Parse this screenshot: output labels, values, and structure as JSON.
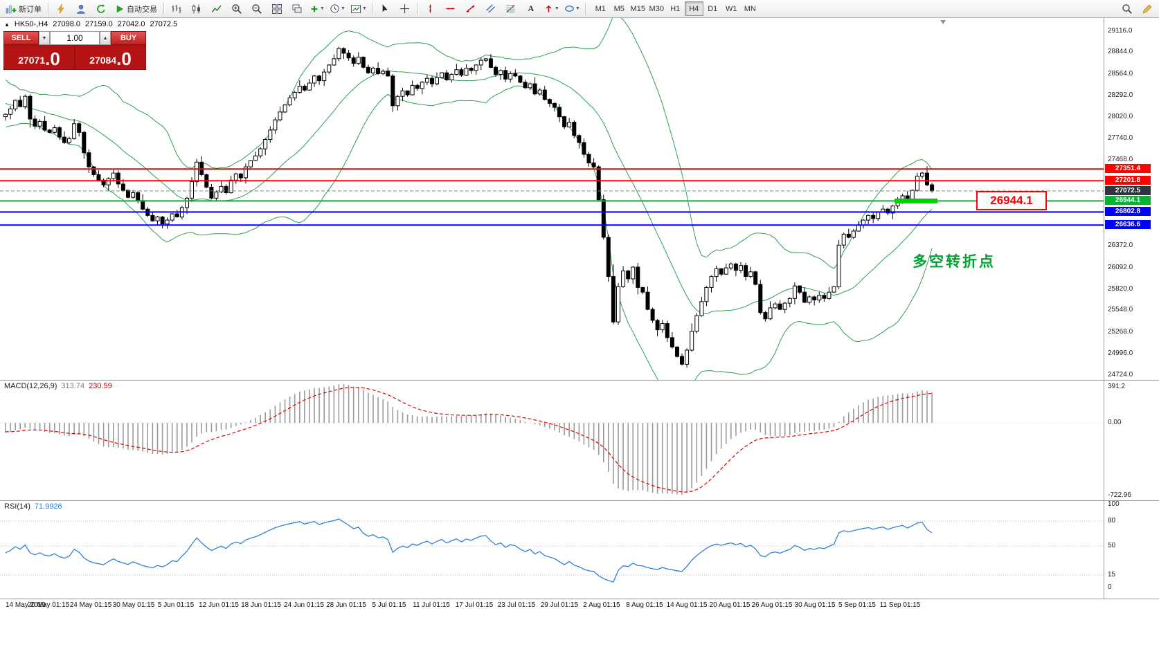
{
  "toolbar": {
    "new_order_label": "新订单",
    "autotrade_label": "自动交易",
    "timeframes": [
      {
        "label": "M1",
        "active": false
      },
      {
        "label": "M5",
        "active": false
      },
      {
        "label": "M15",
        "active": false
      },
      {
        "label": "M30",
        "active": false
      },
      {
        "label": "H1",
        "active": false
      },
      {
        "label": "H4",
        "active": true
      },
      {
        "label": "D1",
        "active": false
      },
      {
        "label": "W1",
        "active": false
      },
      {
        "label": "MN",
        "active": false
      }
    ],
    "text_tool_label": "A",
    "icon_names": [
      "new-order-icon",
      "bolt-icon",
      "profile-icon",
      "refresh-icon",
      "autotrade-play-icon",
      "bars-chart-icon",
      "candlestick-chart-icon",
      "line-chart-icon",
      "zoom-in-icon",
      "zoom-out-icon",
      "tile-windows-icon",
      "cascade-windows-icon",
      "indicators-plus-icon",
      "period-clock-icon",
      "chart-template-icon",
      "cursor-icon",
      "crosshair-icon",
      "vertical-line-icon",
      "horizontal-line-icon",
      "trendline-icon",
      "channel-icon",
      "fibonacci-icon",
      "text-icon",
      "arrows-icon",
      "shapes-icon",
      "search-icon",
      "edit-icon"
    ]
  },
  "chart": {
    "symbol": "HK50-,H4",
    "ohlc": {
      "open": "27098.0",
      "high": "27159.0",
      "low": "27042.0",
      "close": "27072.5"
    },
    "trade_panel": {
      "sell_label": "SELL",
      "buy_label": "BUY",
      "volume": "1.00",
      "sell_price_main": "27071",
      "sell_price_big": ".0",
      "buy_price_main": "27084",
      "buy_price_big": ".0"
    },
    "annotation": "多空转折点",
    "callout_price": "26944.1",
    "price_range": {
      "min": 24660,
      "max": 29280
    },
    "hlines": [
      {
        "price": 27351.4,
        "label": "27351.4",
        "color": "#ff0000",
        "width": 2,
        "style": "solid",
        "tag_bg": "#ff0000"
      },
      {
        "price": 27201.8,
        "label": "27201.8",
        "color": "#ff0000",
        "width": 2,
        "style": "solid",
        "tag_bg": "#ff0000"
      },
      {
        "price": 27072.5,
        "label": "27072.5",
        "color": "#808080",
        "width": 1,
        "style": "dash",
        "tag_bg": "#2f3440"
      },
      {
        "price": 26944.1,
        "label": "26944.1",
        "color": "#00b830",
        "width": 2,
        "style": "solid",
        "tag_bg": "#00b830"
      },
      {
        "price": 26802.8,
        "label": "26802.8",
        "color": "#0000ff",
        "width": 2,
        "style": "solid",
        "tag_bg": "#0000ff"
      },
      {
        "price": 26636.6,
        "label": "26636.6",
        "color": "#0000ff",
        "width": 2,
        "style": "solid",
        "tag_bg": "#0000ff"
      }
    ],
    "highlight_segment": {
      "price": 26944.1,
      "color": "#00d200"
    },
    "y_axis_labels": [
      29116.0,
      28844.0,
      28564.0,
      28292.0,
      28020.0,
      27740.0,
      27468.0,
      26372.0,
      26092.0,
      25820.0,
      25548.0,
      25268.0,
      24996.0,
      24724.0
    ],
    "x_axis_labels": [
      "14 May 2019",
      "20 May 01:15",
      "24 May 01:15",
      "30 May 01:15",
      "5 Jun 01:15",
      "12 Jun 01:15",
      "18 Jun 01:15",
      "24 Jun 01:15",
      "28 Jun 01:15",
      "5 Jul 01:15",
      "11 Jul 01:15",
      "17 Jul 01:15",
      "23 Jul 01:15",
      "29 Jul 01:15",
      "2 Aug 01:15",
      "8 Aug 01:15",
      "14 Aug 01:15",
      "20 Aug 01:15",
      "26 Aug 01:15",
      "30 Aug 01:15",
      "5 Sep 01:15",
      "11 Sep 01:15"
    ],
    "bollinger": {
      "period": 20,
      "deviation": 2,
      "color": "#2e9e52"
    },
    "candles": {
      "first_open": 28020,
      "wick_pattern": [
        12,
        35,
        8,
        52,
        20,
        15,
        42,
        28,
        60,
        10,
        33,
        18,
        70,
        25,
        45,
        14
      ],
      "preroll": [
        28420,
        28500,
        28380,
        28440,
        28300,
        28360,
        28240,
        28300,
        28180,
        28260,
        28120,
        28200,
        28060,
        28160,
        28020,
        28120,
        27980,
        28090,
        27960,
        28060
      ],
      "closes": [
        28050,
        28120,
        28230,
        28150,
        28280,
        27990,
        27900,
        27960,
        27850,
        27820,
        27880,
        27760,
        27690,
        27740,
        27930,
        27820,
        27560,
        27380,
        27280,
        27210,
        27150,
        27230,
        27300,
        27160,
        27080,
        26990,
        27050,
        26950,
        26840,
        26760,
        26690,
        26740,
        26650,
        26700,
        26780,
        26740,
        26860,
        26980,
        27190,
        27440,
        27280,
        27120,
        26980,
        27060,
        27130,
        27050,
        27210,
        27290,
        27240,
        27380,
        27460,
        27520,
        27610,
        27730,
        27850,
        27980,
        28080,
        28170,
        28260,
        28330,
        28410,
        28360,
        28450,
        28540,
        28480,
        28590,
        28680,
        28760,
        28890,
        28830,
        28770,
        28700,
        28780,
        28650,
        28580,
        28640,
        28570,
        28600,
        28540,
        28160,
        28280,
        28350,
        28300,
        28420,
        28380,
        28460,
        28510,
        28440,
        28520,
        28580,
        28490,
        28560,
        28620,
        28550,
        28640,
        28610,
        28680,
        28740,
        28760,
        28650,
        28560,
        28610,
        28500,
        28570,
        28540,
        28460,
        28390,
        28440,
        28310,
        28360,
        28240,
        28190,
        28140,
        28020,
        27890,
        27950,
        27780,
        27690,
        27540,
        27430,
        27380,
        26960,
        26480,
        25980,
        25400,
        25850,
        26050,
        25950,
        26100,
        25840,
        25780,
        25560,
        25420,
        25300,
        25380,
        25200,
        25080,
        24960,
        24860,
        25040,
        25280,
        25480,
        25660,
        25840,
        25980,
        26080,
        26010,
        26090,
        26140,
        26060,
        26120,
        25980,
        26040,
        25880,
        25520,
        25440,
        25580,
        25630,
        25560,
        25640,
        25700,
        25860,
        25780,
        25650,
        25720,
        25680,
        25740,
        25700,
        25780,
        25850,
        26380,
        26520,
        26480,
        26560,
        26640,
        26700,
        26760,
        26720,
        26800,
        26840,
        26790,
        26880,
        26950,
        27010,
        26960,
        27080,
        27260,
        27300,
        27150,
        27072.5
      ]
    }
  },
  "macd": {
    "title": "MACD(12,26,9)",
    "value_main": "313.74",
    "value_signal": "230.59",
    "scale": {
      "top": "391.2",
      "zero": "0.00",
      "bottom": "-722.96"
    },
    "fast": 12,
    "slow": 26,
    "signal": 9,
    "histogram_color": "#9a9a9a",
    "signal_color": "#e00000"
  },
  "rsi": {
    "title": "RSI(14)",
    "value": "71.9926",
    "period": 14,
    "levels": [
      100,
      80,
      50,
      15,
      0
    ],
    "line_color": "#2f7ed8"
  }
}
